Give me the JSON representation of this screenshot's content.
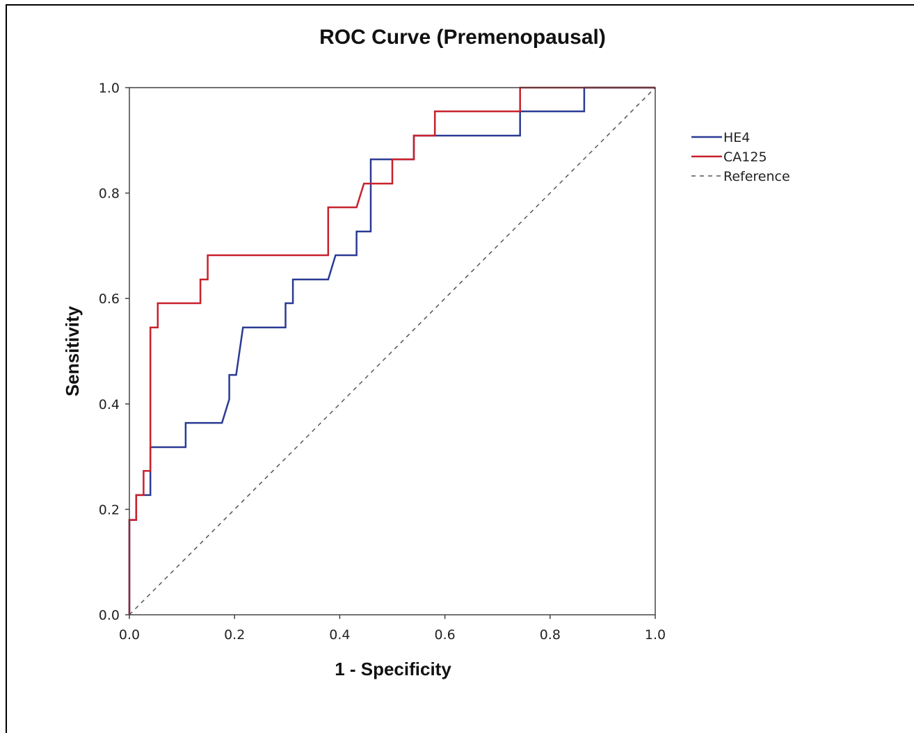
{
  "chart_data": {
    "type": "line",
    "title": "ROC Curve (Premenopausal)",
    "xlabel": "1 - Specificity",
    "ylabel": "Sensitivity",
    "xlim": [
      0.0,
      1.0
    ],
    "ylim": [
      0.0,
      1.0
    ],
    "xticks": [
      "0.0",
      "0.2",
      "0.4",
      "0.6",
      "0.8",
      "1.0"
    ],
    "yticks": [
      "0.0",
      "0.2",
      "0.4",
      "0.6",
      "0.8",
      "1.0"
    ],
    "grid": false,
    "legend_position": "right",
    "series": [
      {
        "name": "HE4",
        "color": "#2a3a94",
        "style": "solid",
        "points": [
          [
            0.0,
            0.0
          ],
          [
            0.0,
            0.18
          ],
          [
            0.013,
            0.18
          ],
          [
            0.013,
            0.227
          ],
          [
            0.04,
            0.227
          ],
          [
            0.04,
            0.318
          ],
          [
            0.107,
            0.318
          ],
          [
            0.107,
            0.364
          ],
          [
            0.176,
            0.364
          ],
          [
            0.19,
            0.409
          ],
          [
            0.19,
            0.455
          ],
          [
            0.203,
            0.455
          ],
          [
            0.216,
            0.545
          ],
          [
            0.297,
            0.545
          ],
          [
            0.297,
            0.591
          ],
          [
            0.311,
            0.591
          ],
          [
            0.311,
            0.636
          ],
          [
            0.378,
            0.636
          ],
          [
            0.392,
            0.682
          ],
          [
            0.432,
            0.682
          ],
          [
            0.432,
            0.727
          ],
          [
            0.459,
            0.727
          ],
          [
            0.459,
            0.864
          ],
          [
            0.541,
            0.864
          ],
          [
            0.541,
            0.909
          ],
          [
            0.743,
            0.909
          ],
          [
            0.743,
            0.955
          ],
          [
            0.865,
            0.955
          ],
          [
            0.865,
            1.0
          ],
          [
            1.0,
            1.0
          ]
        ]
      },
      {
        "name": "CA125",
        "color": "#c8202b",
        "style": "solid",
        "points": [
          [
            0.0,
            0.0
          ],
          [
            0.0,
            0.18
          ],
          [
            0.013,
            0.18
          ],
          [
            0.013,
            0.227
          ],
          [
            0.027,
            0.227
          ],
          [
            0.027,
            0.273
          ],
          [
            0.04,
            0.273
          ],
          [
            0.04,
            0.545
          ],
          [
            0.054,
            0.545
          ],
          [
            0.054,
            0.591
          ],
          [
            0.135,
            0.591
          ],
          [
            0.135,
            0.636
          ],
          [
            0.149,
            0.636
          ],
          [
            0.149,
            0.682
          ],
          [
            0.378,
            0.682
          ],
          [
            0.378,
            0.773
          ],
          [
            0.432,
            0.773
          ],
          [
            0.446,
            0.818
          ],
          [
            0.5,
            0.818
          ],
          [
            0.5,
            0.864
          ],
          [
            0.541,
            0.864
          ],
          [
            0.541,
            0.909
          ],
          [
            0.581,
            0.909
          ],
          [
            0.581,
            0.955
          ],
          [
            0.743,
            0.955
          ],
          [
            0.743,
            1.0
          ],
          [
            1.0,
            1.0
          ]
        ]
      },
      {
        "name": "Reference",
        "color": "#555555",
        "style": "dashed",
        "points": [
          [
            0.0,
            0.0
          ],
          [
            1.0,
            1.0
          ]
        ]
      }
    ]
  }
}
